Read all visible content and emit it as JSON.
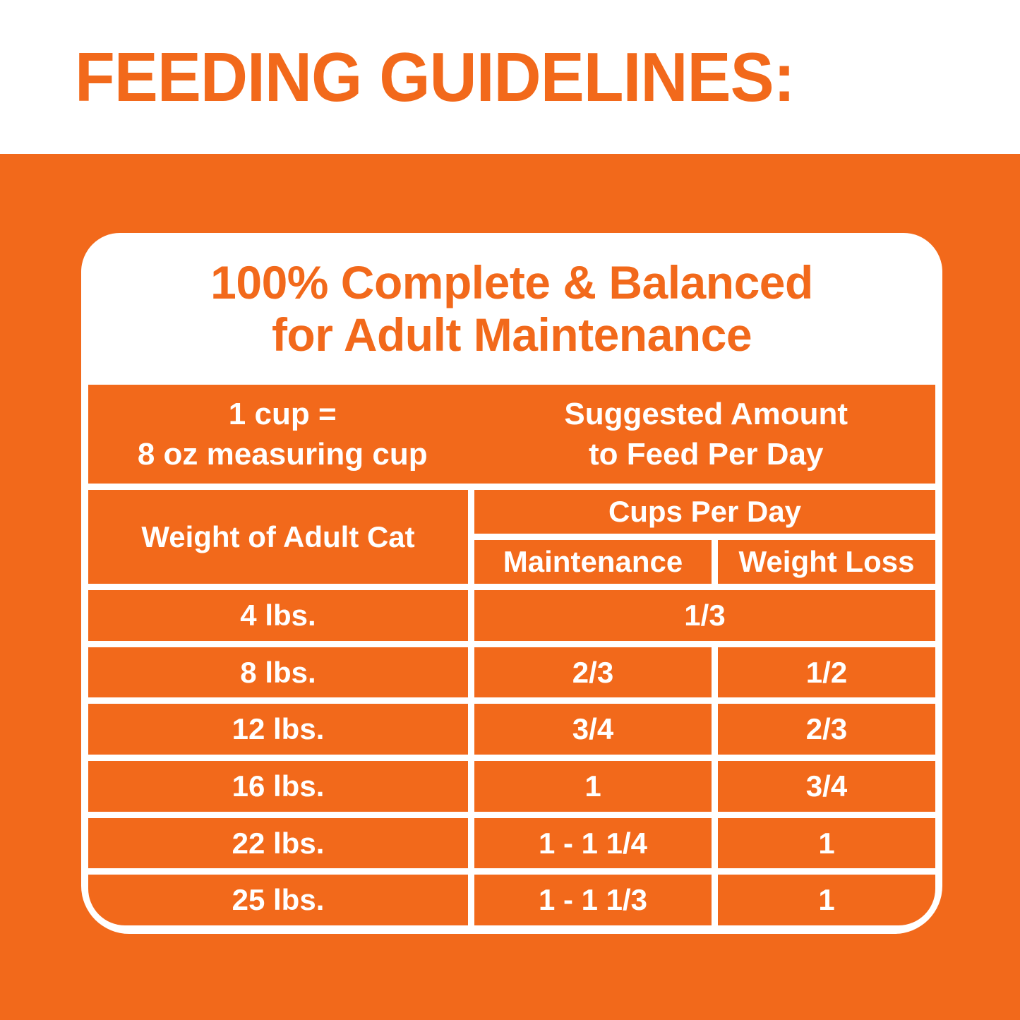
{
  "title": "FEEDING GUIDELINES:",
  "colors": {
    "orange": "#F2691B",
    "white": "#FFFFFF"
  },
  "panel": {
    "heading": {
      "line1": "100% Complete & Balanced",
      "line2": "for Adult Maintenance"
    },
    "cup_note": {
      "line1": "1 cup =",
      "line2": "8 oz measuring cup"
    },
    "suggested": {
      "line1": "Suggested Amount",
      "line2": "to Feed Per Day"
    }
  },
  "table": {
    "weight_header": "Weight of Adult Cat",
    "cups_per_day_header": "Cups Per Day",
    "maintenance_header": "Maintenance",
    "weight_loss_header": "Weight Loss",
    "rows": [
      {
        "weight": "4 lbs.",
        "maintenance": "1/3",
        "weight_loss": "",
        "merged": true
      },
      {
        "weight": "8 lbs.",
        "maintenance": "2/3",
        "weight_loss": "1/2",
        "merged": false
      },
      {
        "weight": "12 lbs.",
        "maintenance": "3/4",
        "weight_loss": "2/3",
        "merged": false
      },
      {
        "weight": "16 lbs.",
        "maintenance": "1",
        "weight_loss": "3/4",
        "merged": false
      },
      {
        "weight": "22 lbs.",
        "maintenance": "1 - 1 1/4",
        "weight_loss": "1",
        "merged": false
      },
      {
        "weight": "25 lbs.",
        "maintenance": "1 - 1 1/3",
        "weight_loss": "1",
        "merged": false
      }
    ]
  }
}
